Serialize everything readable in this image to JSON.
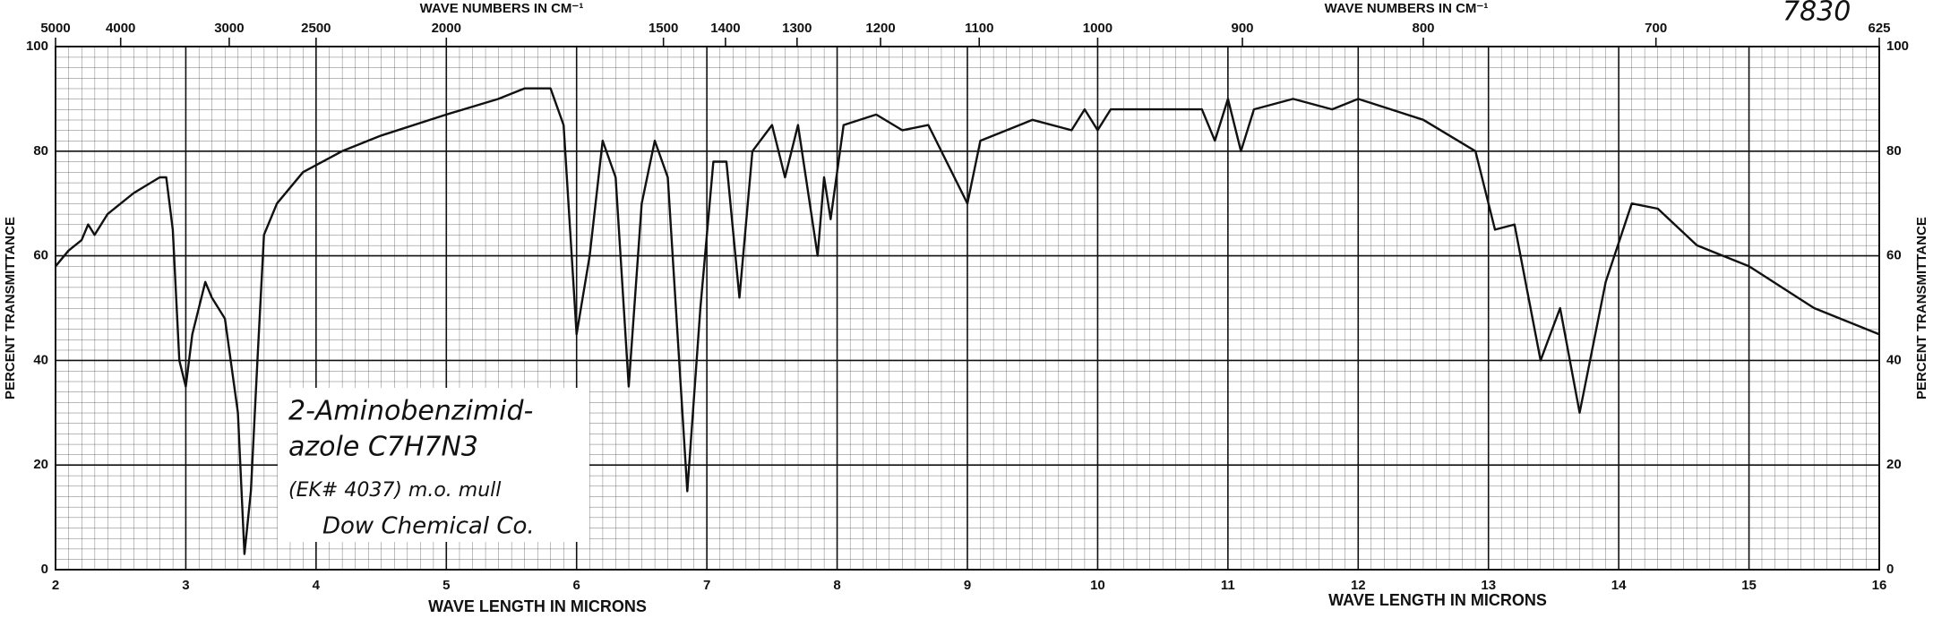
{
  "chart_data": {
    "type": "line",
    "x2label": "WAVE NUMBERS IN CM⁻¹",
    "xlabel": "WAVE LENGTH IN MICRONS",
    "ylabel": "PERCENT TRANSMITTANCE",
    "annotations": [
      "2-Aminobenzimid-",
      "azole  C7H7N3",
      "(EK# 4037)  m.o. mull",
      "Dow Chemical Co.",
      "7830"
    ],
    "x": [
      2.0,
      2.1,
      2.2,
      2.25,
      2.3,
      2.4,
      2.6,
      2.8,
      2.85,
      2.9,
      2.95,
      3.0,
      3.05,
      3.15,
      3.2,
      3.3,
      3.4,
      3.45,
      3.5,
      3.55,
      3.6,
      3.7,
      3.9,
      4.2,
      4.5,
      5.0,
      5.4,
      5.6,
      5.8,
      5.9,
      6.0,
      6.1,
      6.2,
      6.3,
      6.4,
      6.5,
      6.6,
      6.7,
      6.85,
      6.95,
      7.05,
      7.15,
      7.25,
      7.35,
      7.5,
      7.6,
      7.7,
      7.85,
      7.9,
      7.95,
      8.05,
      8.3,
      8.5,
      8.7,
      9.0,
      9.1,
      9.5,
      9.8,
      9.9,
      10.0,
      10.1,
      10.5,
      10.8,
      10.9,
      11.0,
      11.1,
      11.2,
      11.5,
      11.8,
      12.0,
      12.5,
      12.9,
      13.05,
      13.2,
      13.4,
      13.55,
      13.7,
      13.9,
      14.1,
      14.3,
      14.6,
      15.0,
      15.5,
      16.0
    ],
    "series": [
      {
        "name": "2-Aminobenzimidazole",
        "color": "#111111",
        "values": [
          58,
          61,
          63,
          66,
          64,
          68,
          72,
          75,
          75,
          65,
          40,
          35,
          45,
          55,
          52,
          48,
          30,
          3,
          15,
          40,
          64,
          70,
          76,
          80,
          83,
          87,
          90,
          92,
          92,
          85,
          45,
          60,
          82,
          75,
          35,
          70,
          82,
          75,
          15,
          50,
          78,
          78,
          52,
          80,
          85,
          75,
          85,
          60,
          75,
          67,
          85,
          87,
          84,
          85,
          70,
          82,
          86,
          84,
          88,
          84,
          88,
          88,
          88,
          82,
          90,
          80,
          88,
          90,
          88,
          90,
          86,
          80,
          65,
          66,
          40,
          50,
          30,
          55,
          70,
          69,
          62,
          58,
          50,
          45
        ]
      }
    ],
    "xlim": [
      2,
      16
    ],
    "xticks": [
      2,
      3,
      4,
      5,
      6,
      7,
      8,
      9,
      10,
      11,
      12,
      13,
      14,
      15,
      16
    ],
    "x2ticks": [
      5000,
      4000,
      3000,
      2500,
      2000,
      1500,
      1400,
      1300,
      1200,
      1100,
      1000,
      900,
      800,
      700,
      625
    ],
    "ylim": [
      0,
      100
    ],
    "yticks": [
      0,
      20,
      40,
      60,
      80,
      100
    ],
    "grid": true
  }
}
